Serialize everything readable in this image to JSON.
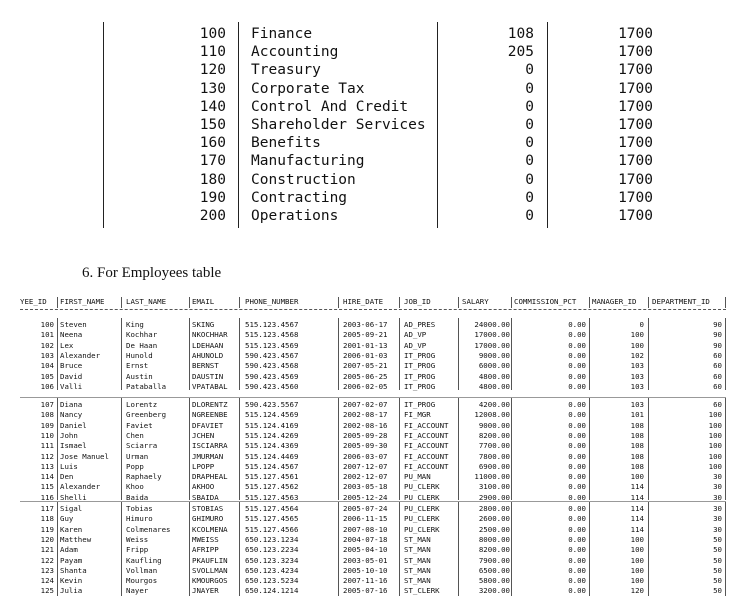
{
  "departments": {
    "rows": [
      [
        "100",
        "Finance",
        "108",
        "1700"
      ],
      [
        "110",
        "Accounting",
        "205",
        "1700"
      ],
      [
        "120",
        "Treasury",
        "0",
        "1700"
      ],
      [
        "130",
        "Corporate Tax",
        "0",
        "1700"
      ],
      [
        "140",
        "Control And Credit",
        "0",
        "1700"
      ],
      [
        "150",
        "Shareholder Services",
        "0",
        "1700"
      ],
      [
        "160",
        "Benefits",
        "0",
        "1700"
      ],
      [
        "170",
        "Manufacturing",
        "0",
        "1700"
      ],
      [
        "180",
        "Construction",
        "0",
        "1700"
      ],
      [
        "190",
        "Contracting",
        "0",
        "1700"
      ],
      [
        "200",
        "Operations",
        "0",
        "1700"
      ]
    ]
  },
  "heading": "6. For Employees table",
  "employees": {
    "columns": [
      "YEE_ID",
      "FIRST_NAME",
      "LAST_NAME",
      "EMAIL",
      "PHONE_NUMBER",
      "HIRE_DATE",
      "JOB_ID",
      "SALARY",
      "COMMISSION_PCT",
      "MANAGER_ID",
      "DEPARTMENT_ID"
    ],
    "blocks": [
      [
        [
          "100",
          "Steven",
          "King",
          "SKING",
          "515.123.4567",
          "2003-06-17",
          "AD_PRES",
          "24000.00",
          "0.00",
          "0",
          "90"
        ],
        [
          "101",
          "Neena",
          "Kochhar",
          "NKOCHHAR",
          "515.123.4568",
          "2005-09-21",
          "AD_VP",
          "17000.00",
          "0.00",
          "100",
          "90"
        ],
        [
          "102",
          "Lex",
          "De Haan",
          "LDEHAAN",
          "515.123.4569",
          "2001-01-13",
          "AD_VP",
          "17000.00",
          "0.00",
          "100",
          "90"
        ],
        [
          "103",
          "Alexander",
          "Hunold",
          "AHUNOLD",
          "590.423.4567",
          "2006-01-03",
          "IT_PROG",
          "9000.00",
          "0.00",
          "102",
          "60"
        ],
        [
          "104",
          "Bruce",
          "Ernst",
          "BERNST",
          "590.423.4568",
          "2007-05-21",
          "IT_PROG",
          "6000.00",
          "0.00",
          "103",
          "60"
        ],
        [
          "105",
          "David",
          "Austin",
          "DAUSTIN",
          "590.423.4569",
          "2005-06-25",
          "IT_PROG",
          "4800.00",
          "0.00",
          "103",
          "60"
        ],
        [
          "106",
          "Valli",
          "Pataballa",
          "VPATABAL",
          "590.423.4560",
          "2006-02-05",
          "IT_PROG",
          "4800.00",
          "0.00",
          "103",
          "60"
        ]
      ],
      [
        [
          "107",
          "Diana",
          "Lorentz",
          "DLORENTZ",
          "590.423.5567",
          "2007-02-07",
          "IT_PROG",
          "4200.00",
          "0.00",
          "103",
          "60"
        ],
        [
          "108",
          "Nancy",
          "Greenberg",
          "NGREENBE",
          "515.124.4569",
          "2002-08-17",
          "FI_MGR",
          "12008.00",
          "0.00",
          "101",
          "100"
        ],
        [
          "109",
          "Daniel",
          "Faviet",
          "DFAVIET",
          "515.124.4169",
          "2002-08-16",
          "FI_ACCOUNT",
          "9000.00",
          "0.00",
          "108",
          "100"
        ],
        [
          "110",
          "John",
          "Chen",
          "JCHEN",
          "515.124.4269",
          "2005-09-28",
          "FI_ACCOUNT",
          "8200.00",
          "0.00",
          "108",
          "100"
        ],
        [
          "111",
          "Ismael",
          "Sciarra",
          "ISCIARRA",
          "515.124.4369",
          "2005-09-30",
          "FI_ACCOUNT",
          "7700.00",
          "0.00",
          "108",
          "100"
        ],
        [
          "112",
          "Jose Manuel",
          "Urman",
          "JMURMAN",
          "515.124.4469",
          "2006-03-07",
          "FI_ACCOUNT",
          "7800.00",
          "0.00",
          "108",
          "100"
        ],
        [
          "113",
          "Luis",
          "Popp",
          "LPOPP",
          "515.124.4567",
          "2007-12-07",
          "FI_ACCOUNT",
          "6900.00",
          "0.00",
          "108",
          "100"
        ],
        [
          "114",
          "Den",
          "Raphaely",
          "DRAPHEAL",
          "515.127.4561",
          "2002-12-07",
          "PU_MAN",
          "11000.00",
          "0.00",
          "100",
          "30"
        ],
        [
          "115",
          "Alexander",
          "Khoo",
          "AKHOO",
          "515.127.4562",
          "2003-05-18",
          "PU_CLERK",
          "3100.00",
          "0.00",
          "114",
          "30"
        ],
        [
          "116",
          "Shelli",
          "Baida",
          "SBAIDA",
          "515.127.4563",
          "2005-12-24",
          "PU_CLERK",
          "2900.00",
          "0.00",
          "114",
          "30"
        ]
      ],
      [
        [
          "117",
          "Sigal",
          "Tobias",
          "STOBIAS",
          "515.127.4564",
          "2005-07-24",
          "PU_CLERK",
          "2800.00",
          "0.00",
          "114",
          "30"
        ],
        [
          "118",
          "Guy",
          "Himuro",
          "GHIMURO",
          "515.127.4565",
          "2006-11-15",
          "PU_CLERK",
          "2600.00",
          "0.00",
          "114",
          "30"
        ],
        [
          "119",
          "Karen",
          "Colmenares",
          "KCOLMENA",
          "515.127.4566",
          "2007-08-10",
          "PU_CLERK",
          "2500.00",
          "0.00",
          "114",
          "30"
        ],
        [
          "120",
          "Matthew",
          "Weiss",
          "MWEISS",
          "650.123.1234",
          "2004-07-18",
          "ST_MAN",
          "8000.00",
          "0.00",
          "100",
          "50"
        ],
        [
          "121",
          "Adam",
          "Fripp",
          "AFRIPP",
          "650.123.2234",
          "2005-04-10",
          "ST_MAN",
          "8200.00",
          "0.00",
          "100",
          "50"
        ],
        [
          "122",
          "Payam",
          "Kaufling",
          "PKAUFLIN",
          "650.123.3234",
          "2003-05-01",
          "ST_MAN",
          "7900.00",
          "0.00",
          "100",
          "50"
        ],
        [
          "123",
          "Shanta",
          "Vollman",
          "SVOLLMAN",
          "650.123.4234",
          "2005-10-10",
          "ST_MAN",
          "6500.00",
          "0.00",
          "100",
          "50"
        ],
        [
          "124",
          "Kevin",
          "Mourgos",
          "KMOURGOS",
          "650.123.5234",
          "2007-11-16",
          "ST_MAN",
          "5800.00",
          "0.00",
          "100",
          "50"
        ],
        [
          "125",
          "Julia",
          "Nayer",
          "JNAYER",
          "650.124.1214",
          "2005-07-16",
          "ST_CLERK",
          "3200.00",
          "0.00",
          "120",
          "50"
        ]
      ]
    ]
  }
}
